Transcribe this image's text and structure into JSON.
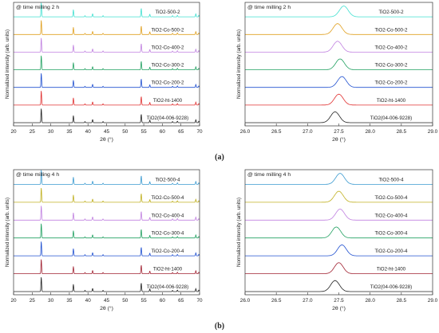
{
  "chart_data": [
    {
      "id": "a-left",
      "type": "line",
      "annotation": "@ time milling 2 h",
      "xlabel": "2θ (°)",
      "ylabel": "Normalized intensity (arb. units)",
      "xlim": [
        20,
        70
      ],
      "xticks": [
        "20",
        "25",
        "30",
        "35",
        "40",
        "45",
        "50",
        "55",
        "60",
        "65",
        "70"
      ],
      "series": [
        {
          "name": "TiO2-500-2",
          "color": "#40e0d0"
        },
        {
          "name": "TiO2-Co-500-2",
          "color": "#e0a020"
        },
        {
          "name": "TiO2-Co-400-2",
          "color": "#c080e0"
        },
        {
          "name": "TiO2-Co-300-2",
          "color": "#20a060"
        },
        {
          "name": "TiO2-Co-200-2",
          "color": "#2050d0"
        },
        {
          "name": "TiO2-ht-1400",
          "color": "#e03030"
        },
        {
          "name": "TiO2(04-006-9228)",
          "color": "#222222"
        }
      ],
      "peaks_2theta": [
        27.45,
        36.08,
        39.2,
        41.25,
        44.05,
        54.33,
        56.62,
        62.75,
        64.05,
        69.0,
        69.8
      ],
      "peak_rel_intensity": [
        1.0,
        0.5,
        0.08,
        0.22,
        0.08,
        0.6,
        0.18,
        0.08,
        0.1,
        0.2,
        0.1
      ]
    },
    {
      "id": "a-right",
      "type": "line",
      "annotation": "@ time milling 2 h",
      "xlabel": "2θ (°)",
      "ylabel": "Normalized intensity (arb. units)",
      "xlim": [
        26.0,
        29.0
      ],
      "xticks": [
        "26.0",
        "26.5",
        "27.0",
        "27.5",
        "28.0",
        "28.5",
        "29.0"
      ],
      "series": [
        {
          "name": "TiO2-500-2",
          "color": "#40e0d0",
          "peak": 27.58
        },
        {
          "name": "TiO2-Co-500-2",
          "color": "#e0a020",
          "peak": 27.48
        },
        {
          "name": "TiO2-Co-400-2",
          "color": "#c080e0",
          "peak": 27.48
        },
        {
          "name": "TiO2-Co-300-2",
          "color": "#20a060",
          "peak": 27.52
        },
        {
          "name": "TiO2-Co-200-2",
          "color": "#2050d0",
          "peak": 27.55
        },
        {
          "name": "TiO2-ht-1400",
          "color": "#e03030",
          "peak": 27.5
        },
        {
          "name": "TiO2(04-006-9228)",
          "color": "#222222",
          "peak": 27.44
        }
      ]
    },
    {
      "id": "b-left",
      "type": "line",
      "annotation": "@ time milling 4 h",
      "xlabel": "2θ (°)",
      "ylabel": "Normalized intensity (arb. units)",
      "xlim": [
        20,
        70
      ],
      "xticks": [
        "20",
        "25",
        "30",
        "35",
        "40",
        "45",
        "50",
        "55",
        "60",
        "65",
        "70"
      ],
      "series": [
        {
          "name": "TiO2-500-4",
          "color": "#3a9ad0"
        },
        {
          "name": "TiO2-Co-500-4",
          "color": "#c0b020"
        },
        {
          "name": "TiO2-Co-400-4",
          "color": "#c080e0"
        },
        {
          "name": "TiO2-Co-300-4",
          "color": "#20a060"
        },
        {
          "name": "TiO2-Co-200-4",
          "color": "#2050d0"
        },
        {
          "name": "TiO2-ht-1400",
          "color": "#a02030"
        },
        {
          "name": "TiO2(04-006-9228)",
          "color": "#222222"
        }
      ],
      "peaks_2theta": [
        27.45,
        36.08,
        39.2,
        41.25,
        44.05,
        54.33,
        56.62,
        62.75,
        64.05,
        69.0,
        69.8
      ],
      "peak_rel_intensity": [
        1.0,
        0.5,
        0.08,
        0.22,
        0.08,
        0.6,
        0.18,
        0.08,
        0.1,
        0.2,
        0.1
      ]
    },
    {
      "id": "b-right",
      "type": "line",
      "annotation": "@ time milling 4 h",
      "xlabel": "2θ (°)",
      "ylabel": "Normalized intensity (arb. units)",
      "xlim": [
        26.0,
        29.0
      ],
      "xticks": [
        "26.0",
        "26.5",
        "27.0",
        "27.5",
        "28.0",
        "28.5",
        "29.0"
      ],
      "series": [
        {
          "name": "TiO2-500-4",
          "color": "#3a9ad0",
          "peak": 27.52
        },
        {
          "name": "TiO2-Co-500-4",
          "color": "#c0b020",
          "peak": 27.5
        },
        {
          "name": "TiO2-Co-400-4",
          "color": "#c080e0",
          "peak": 27.52
        },
        {
          "name": "TiO2-Co-300-4",
          "color": "#20a060",
          "peak": 27.46
        },
        {
          "name": "TiO2-Co-200-4",
          "color": "#2050d0",
          "peak": 27.55
        },
        {
          "name": "TiO2-ht-1400",
          "color": "#a02030",
          "peak": 27.5
        },
        {
          "name": "TiO2(04-006-9228)",
          "color": "#222222",
          "peak": 27.44
        }
      ]
    }
  ],
  "captions": {
    "a": "(a)",
    "b": "(b)"
  }
}
